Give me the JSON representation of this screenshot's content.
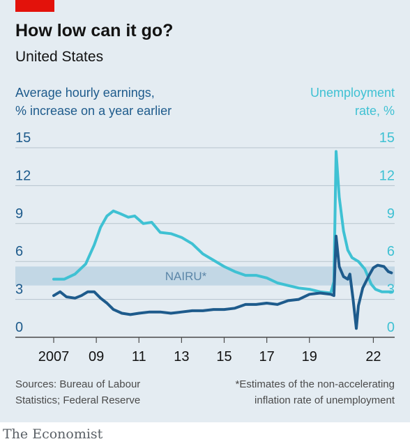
{
  "header": {
    "title": "How low can it go?",
    "subtitle": "United States",
    "left_axis_label": [
      "Average hourly earnings,",
      "% increase on a year earlier"
    ],
    "right_axis_label": [
      "Unemployment",
      "rate, %"
    ]
  },
  "footer": {
    "source": [
      "Sources: Bureau of Labour",
      "Statistics; Federal Reserve"
    ],
    "footnote": [
      "*Estimates of the non-accelerating",
      "inflation rate of unemployment"
    ],
    "brand": "The Economist"
  },
  "colors": {
    "earnings": "#1e5b8c",
    "unemployment": "#3fc1d3",
    "band": "#c2d7e5",
    "background": "#e4ecf2"
  },
  "chart_data": {
    "type": "line",
    "title": "How low can it go?",
    "subtitle": "United States",
    "x_ticks": [
      2007,
      2009,
      2011,
      2013,
      2015,
      2017,
      2019,
      2022
    ],
    "x_tick_labels": [
      "2007",
      "09",
      "11",
      "13",
      "15",
      "17",
      "19",
      "22"
    ],
    "xlim": [
      2005.2,
      2023
    ],
    "ylim": [
      0,
      15
    ],
    "y_ticks": [
      0,
      3,
      6,
      9,
      12,
      15
    ],
    "grid": true,
    "band": {
      "label": "NAIRU*",
      "low": 4.1,
      "high": 5.6
    },
    "series": [
      {
        "name": "Average hourly earnings, % increase on a year earlier",
        "axis": "left",
        "points": [
          [
            2007.0,
            3.3
          ],
          [
            2007.3,
            3.6
          ],
          [
            2007.6,
            3.2
          ],
          [
            2008.0,
            3.1
          ],
          [
            2008.3,
            3.3
          ],
          [
            2008.6,
            3.6
          ],
          [
            2008.9,
            3.6
          ],
          [
            2009.2,
            3.1
          ],
          [
            2009.5,
            2.7
          ],
          [
            2009.8,
            2.2
          ],
          [
            2010.2,
            1.9
          ],
          [
            2010.6,
            1.8
          ],
          [
            2011.0,
            1.9
          ],
          [
            2011.5,
            2.0
          ],
          [
            2012.0,
            2.0
          ],
          [
            2012.5,
            1.9
          ],
          [
            2013.0,
            2.0
          ],
          [
            2013.5,
            2.1
          ],
          [
            2014.0,
            2.1
          ],
          [
            2014.5,
            2.2
          ],
          [
            2015.0,
            2.2
          ],
          [
            2015.5,
            2.3
          ],
          [
            2016.0,
            2.6
          ],
          [
            2016.5,
            2.6
          ],
          [
            2017.0,
            2.7
          ],
          [
            2017.5,
            2.6
          ],
          [
            2018.0,
            2.9
          ],
          [
            2018.5,
            3.0
          ],
          [
            2019.0,
            3.4
          ],
          [
            2019.5,
            3.5
          ],
          [
            2020.0,
            3.4
          ],
          [
            2020.15,
            3.3
          ],
          [
            2020.25,
            8.0
          ],
          [
            2020.4,
            5.6
          ],
          [
            2020.6,
            4.8
          ],
          [
            2020.8,
            4.6
          ],
          [
            2020.9,
            5.0
          ],
          [
            2021.05,
            3.0
          ],
          [
            2021.2,
            0.7
          ],
          [
            2021.3,
            2.5
          ],
          [
            2021.5,
            3.9
          ],
          [
            2021.8,
            4.9
          ],
          [
            2022.0,
            5.5
          ],
          [
            2022.2,
            5.7
          ],
          [
            2022.5,
            5.6
          ],
          [
            2022.7,
            5.2
          ],
          [
            2022.85,
            5.1
          ]
        ]
      },
      {
        "name": "Unemployment rate, %",
        "axis": "right",
        "points": [
          [
            2007.0,
            4.6
          ],
          [
            2007.5,
            4.6
          ],
          [
            2008.0,
            5.0
          ],
          [
            2008.5,
            5.8
          ],
          [
            2008.9,
            7.3
          ],
          [
            2009.2,
            8.7
          ],
          [
            2009.5,
            9.6
          ],
          [
            2009.8,
            10.0
          ],
          [
            2010.1,
            9.8
          ],
          [
            2010.5,
            9.5
          ],
          [
            2010.8,
            9.6
          ],
          [
            2011.2,
            9.0
          ],
          [
            2011.6,
            9.1
          ],
          [
            2012.0,
            8.3
          ],
          [
            2012.5,
            8.2
          ],
          [
            2013.0,
            7.9
          ],
          [
            2013.5,
            7.4
          ],
          [
            2014.0,
            6.6
          ],
          [
            2014.5,
            6.1
          ],
          [
            2015.0,
            5.6
          ],
          [
            2015.5,
            5.2
          ],
          [
            2016.0,
            4.9
          ],
          [
            2016.5,
            4.9
          ],
          [
            2017.0,
            4.7
          ],
          [
            2017.5,
            4.3
          ],
          [
            2018.0,
            4.1
          ],
          [
            2018.5,
            3.9
          ],
          [
            2019.0,
            3.8
          ],
          [
            2019.5,
            3.6
          ],
          [
            2020.0,
            3.5
          ],
          [
            2020.15,
            4.4
          ],
          [
            2020.25,
            14.7
          ],
          [
            2020.4,
            11.1
          ],
          [
            2020.6,
            8.4
          ],
          [
            2020.8,
            6.9
          ],
          [
            2021.0,
            6.3
          ],
          [
            2021.3,
            6.0
          ],
          [
            2021.6,
            5.4
          ],
          [
            2021.9,
            4.2
          ],
          [
            2022.1,
            3.8
          ],
          [
            2022.4,
            3.6
          ],
          [
            2022.6,
            3.6
          ],
          [
            2022.85,
            3.6
          ]
        ]
      }
    ]
  }
}
